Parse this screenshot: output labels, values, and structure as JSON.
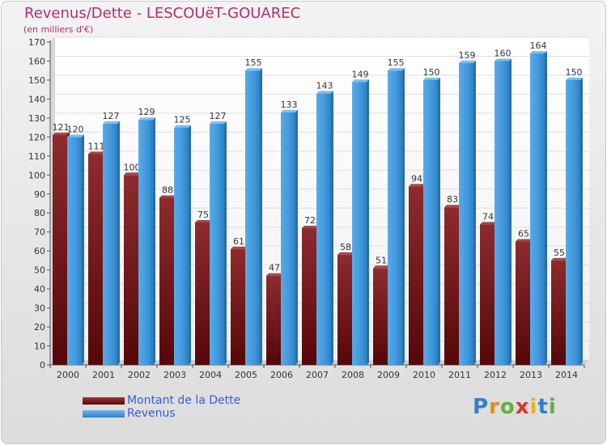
{
  "chart_data": {
    "type": "bar",
    "title": "Revenus/Dette - LESCOUëT-GOUAREC",
    "subtitle": "(en milliers d'€)",
    "categories": [
      "2000",
      "2001",
      "2002",
      "2003",
      "2004",
      "2005",
      "2006",
      "2007",
      "2008",
      "2009",
      "2010",
      "2011",
      "2012",
      "2013",
      "2014"
    ],
    "series": [
      {
        "name": "Montant de la Dette",
        "color": "#7a1a1d",
        "values": [
          121,
          111,
          100,
          88,
          75,
          61,
          47,
          72,
          58,
          51,
          94,
          83,
          74,
          65,
          55
        ]
      },
      {
        "name": "Revenus",
        "color": "#3f98dc",
        "values": [
          120,
          127,
          129,
          125,
          127,
          155,
          133,
          143,
          149,
          155,
          150,
          159,
          160,
          164,
          150
        ]
      }
    ],
    "ylim": [
      0,
      170
    ],
    "yticks": [
      0,
      10,
      20,
      30,
      40,
      50,
      60,
      70,
      80,
      90,
      100,
      110,
      120,
      130,
      140,
      150,
      160,
      170
    ],
    "grid": true,
    "legend_position": "bottom-left"
  },
  "brand": {
    "letters": [
      "P",
      "r",
      "o",
      "x",
      "i",
      "t",
      "i"
    ],
    "colors": [
      "#2e7fd0",
      "#e88a1a",
      "#5fb041",
      "#d9342b",
      "#e8b515",
      "#2e7fd0",
      "#5fb041"
    ]
  }
}
